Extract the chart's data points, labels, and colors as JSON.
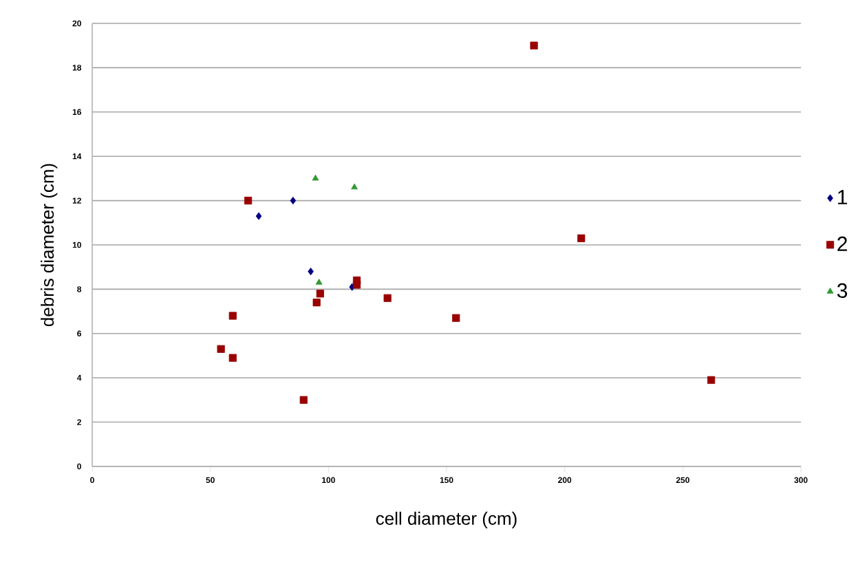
{
  "chart_data": {
    "type": "scatter",
    "xlabel": "cell diameter (cm)",
    "ylabel": "debris diameter (cm)",
    "xlim": [
      0,
      300
    ],
    "xticks": [
      0,
      50,
      100,
      150,
      200,
      250,
      300
    ],
    "ylim": [
      0,
      20
    ],
    "yticks": [
      0,
      2,
      4,
      6,
      8,
      10,
      12,
      14,
      16,
      18,
      20
    ],
    "grid": "y",
    "legend": "right",
    "series": [
      {
        "name": "1",
        "color": "#000080",
        "marker": "diamond",
        "x": [
          85,
          70.5,
          92.5,
          110
        ],
        "values": [
          12.0,
          11.3,
          8.8,
          8.1
        ]
      },
      {
        "name": "2",
        "color": "#990000",
        "marker": "square",
        "x": [
          66,
          187,
          207,
          96.5,
          95,
          112,
          112,
          125,
          154,
          262,
          54.5,
          59.5,
          59.5,
          89.5
        ],
        "values": [
          12.0,
          19.0,
          10.3,
          7.8,
          7.4,
          8.4,
          8.2,
          7.6,
          6.7,
          3.9,
          5.3,
          4.9,
          6.8,
          3.0
        ]
      },
      {
        "name": "3",
        "color": "#339933",
        "marker": "triangle",
        "x": [
          94.5,
          111,
          96
        ],
        "values": [
          13.0,
          12.6,
          8.3
        ]
      }
    ]
  }
}
